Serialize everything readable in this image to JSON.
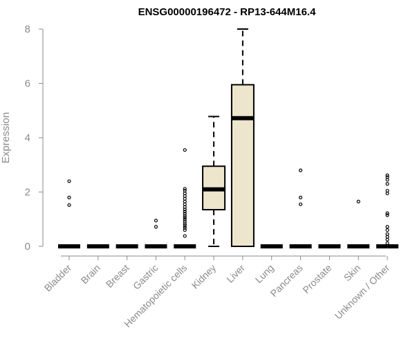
{
  "chart_data": {
    "type": "box",
    "title": "ENSG00000196472 - RP13-644M16.4",
    "xlabel": "",
    "ylabel": "Expression",
    "ylim": [
      0,
      8
    ],
    "yticks": [
      0,
      2,
      4,
      6,
      8
    ],
    "box_fill": "#ede6cc",
    "categories": [
      "Bladder",
      "Brain",
      "Breast",
      "Gastric",
      "Hematopoietic cells",
      "Kidney",
      "Liver",
      "Lung",
      "Pancreas",
      "Prostate",
      "Skin",
      "Unknown / Other"
    ],
    "boxes": [
      {
        "category": "Bladder",
        "q1": 0,
        "median": 0,
        "q3": 0,
        "whisker_low": 0,
        "whisker_high": 0,
        "outliers": [
          1.52,
          1.8,
          2.4
        ]
      },
      {
        "category": "Brain",
        "q1": 0,
        "median": 0,
        "q3": 0,
        "whisker_low": 0,
        "whisker_high": 0,
        "outliers": []
      },
      {
        "category": "Breast",
        "q1": 0,
        "median": 0,
        "q3": 0,
        "whisker_low": 0,
        "whisker_high": 0,
        "outliers": []
      },
      {
        "category": "Gastric",
        "q1": 0,
        "median": 0,
        "q3": 0,
        "whisker_low": 0,
        "whisker_high": 0,
        "outliers": [
          0.72,
          0.95
        ]
      },
      {
        "category": "Hematopoietic cells",
        "q1": 0,
        "median": 0,
        "q3": 0,
        "whisker_low": 0,
        "whisker_high": 0,
        "outliers": [
          0.38,
          0.6,
          0.68,
          0.75,
          0.82,
          0.9,
          0.98,
          1.05,
          1.12,
          1.2,
          1.28,
          1.36,
          1.45,
          1.55,
          1.65,
          1.75,
          1.85,
          1.95,
          2.05,
          2.12,
          3.55
        ]
      },
      {
        "category": "Kidney",
        "q1": 1.35,
        "median": 2.1,
        "q3": 2.95,
        "whisker_low": 0,
        "whisker_high": 4.78,
        "outliers": []
      },
      {
        "category": "Liver",
        "q1": 0,
        "median": 4.72,
        "q3": 5.95,
        "whisker_low": 0,
        "whisker_high": 8.0,
        "outliers": []
      },
      {
        "category": "Lung",
        "q1": 0,
        "median": 0,
        "q3": 0,
        "whisker_low": 0,
        "whisker_high": 0,
        "outliers": []
      },
      {
        "category": "Pancreas",
        "q1": 0,
        "median": 0,
        "q3": 0,
        "whisker_low": 0,
        "whisker_high": 0,
        "outliers": [
          1.55,
          1.8,
          2.8
        ]
      },
      {
        "category": "Prostate",
        "q1": 0,
        "median": 0,
        "q3": 0,
        "whisker_low": 0,
        "whisker_high": 0,
        "outliers": []
      },
      {
        "category": "Skin",
        "q1": 0,
        "median": 0,
        "q3": 0,
        "whisker_low": 0,
        "whisker_high": 0,
        "outliers": [
          1.65
        ]
      },
      {
        "category": "Unknown / Other",
        "q1": 0,
        "median": 0,
        "q3": 0,
        "whisker_low": 0,
        "whisker_high": 0,
        "outliers": [
          0.12,
          0.25,
          0.35,
          0.45,
          0.6,
          0.72,
          1.15,
          1.22,
          1.95,
          2.05,
          2.3,
          2.45,
          2.55,
          2.62
        ]
      }
    ]
  }
}
